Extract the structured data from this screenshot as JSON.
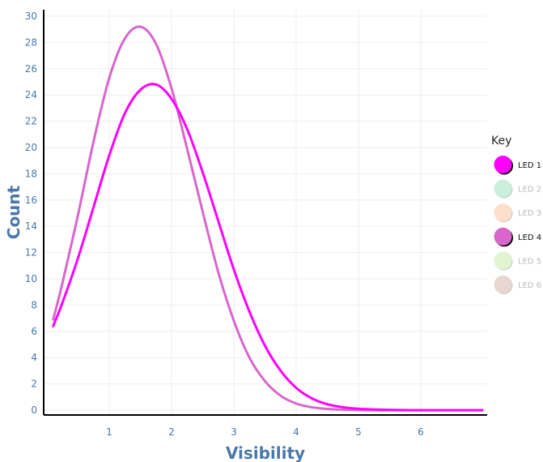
{
  "chart_data": {
    "type": "line",
    "title": "",
    "xlabel": "Visibility",
    "ylabel": "Count",
    "xlim": [
      0,
      7
    ],
    "ylim": [
      0,
      30
    ],
    "x_ticks": [
      1,
      2,
      3,
      4,
      5,
      6
    ],
    "y_ticks": [
      0,
      2,
      4,
      6,
      8,
      10,
      12,
      14,
      16,
      18,
      20,
      22,
      24,
      26,
      28,
      30
    ],
    "grid": true,
    "legend": {
      "title": "Key",
      "placement": "right",
      "entries": [
        {
          "label": "LED 1",
          "color": "#ff00ff",
          "active": true
        },
        {
          "label": "LED 2",
          "color": "#c8f0dc",
          "active": false
        },
        {
          "label": "LED 3",
          "color": "#fde0cc",
          "active": false
        },
        {
          "label": "LED 4",
          "color": "#d966cc",
          "active": true
        },
        {
          "label": "LED 5",
          "color": "#e2f5d2",
          "active": false
        },
        {
          "label": "LED 6",
          "color": "#e8d6d0",
          "active": false
        }
      ]
    },
    "series": [
      {
        "name": "LED 1",
        "color": "#ff00ff",
        "x": [
          0.1,
          0.25,
          0.5,
          0.75,
          1.0,
          1.25,
          1.5,
          1.75,
          2.0,
          2.25,
          2.5,
          2.75,
          3.0,
          3.25,
          3.5,
          3.75,
          4.0,
          4.25,
          4.5,
          4.75,
          5.0,
          5.5,
          6.0,
          6.5,
          7.0
        ],
        "values": [
          6.4,
          8.2,
          11.6,
          15.5,
          19.4,
          22.6,
          24.4,
          24.8,
          23.7,
          21.4,
          18.1,
          14.4,
          10.7,
          7.5,
          4.9,
          3.0,
          1.7,
          0.9,
          0.45,
          0.22,
          0.1,
          0.02,
          0.0,
          0.0,
          0.0
        ]
      },
      {
        "name": "LED 4",
        "color": "#d966cc",
        "x": [
          0.1,
          0.25,
          0.5,
          0.75,
          1.0,
          1.25,
          1.5,
          1.75,
          2.0,
          2.25,
          2.5,
          2.75,
          3.0,
          3.25,
          3.5,
          3.75,
          4.0,
          4.25,
          4.5,
          4.75,
          5.0,
          5.5,
          6.0,
          6.5,
          7.0
        ],
        "values": [
          6.9,
          9.7,
          14.9,
          20.5,
          25.3,
          28.3,
          29.2,
          27.9,
          24.5,
          19.9,
          15.1,
          10.5,
          6.8,
          4.0,
          2.2,
          1.1,
          0.5,
          0.22,
          0.09,
          0.03,
          0.01,
          0.0,
          0.0,
          0.0,
          0.0
        ]
      }
    ]
  }
}
